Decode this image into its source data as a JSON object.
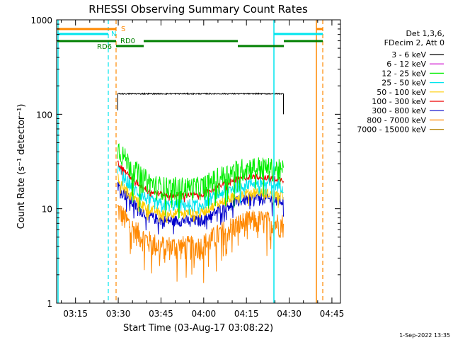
{
  "chart_data": {
    "type": "line",
    "title": "RHESSI Observing Summary Count Rates",
    "xlabel": "Start Time (03-Aug-17 03:08:22)",
    "ylabel": "Count Rate (s⁻¹ detector⁻¹)",
    "yscale": "log",
    "ylim": [
      1,
      1000
    ],
    "xlim_minutes": [
      188.37,
      288.0
    ],
    "x_ticks": [
      {
        "m": 195,
        "label": "03:15"
      },
      {
        "m": 210,
        "label": "03:30"
      },
      {
        "m": 225,
        "label": "03:45"
      },
      {
        "m": 240,
        "label": "04:00"
      },
      {
        "m": 255,
        "label": "04:15"
      },
      {
        "m": 270,
        "label": "04:30"
      },
      {
        "m": 285,
        "label": "04:45"
      }
    ],
    "y_ticks": [
      {
        "v": 1,
        "label": "1"
      },
      {
        "v": 10,
        "label": "10"
      },
      {
        "v": 100,
        "label": "100"
      },
      {
        "v": 1000,
        "label": "1000"
      }
    ],
    "legend_position": "right",
    "legend_header": [
      "Det 1,3,6,",
      "FDecim 2, Att 0"
    ],
    "series": [
      {
        "name": "3 - 6 keV",
        "color": "#000000",
        "kind": "flat",
        "level": 165,
        "noise": 0.03
      },
      {
        "name": "6 - 12 keV",
        "color": "#cc00cc",
        "kind": "hidden"
      },
      {
        "name": "12 - 25 keV",
        "color": "#00ee00",
        "kind": "curve",
        "v0": 45,
        "vmin": 17,
        "vend": 28,
        "noise": 0.28
      },
      {
        "name": "25 - 50 keV",
        "color": "#00e5ee",
        "kind": "curve",
        "v0": 27,
        "vmin": 11,
        "vend": 19,
        "noise": 0.16
      },
      {
        "name": "50 - 100 keV",
        "color": "#ffcc00",
        "kind": "curve",
        "v0": 21,
        "vmin": 9,
        "vend": 15,
        "noise": 0.12
      },
      {
        "name": "100 - 300 keV",
        "color": "#ee0000",
        "kind": "curve",
        "v0": 31,
        "vmin": 14,
        "vend": 22,
        "noise": 0.07
      },
      {
        "name": "300 - 800 keV",
        "color": "#0000cc",
        "kind": "curve",
        "v0": 18,
        "vmin": 7.5,
        "vend": 13,
        "noise": 0.14
      },
      {
        "name": "800 - 7000 keV",
        "color": "#ff8800",
        "kind": "curve",
        "v0": 10,
        "vmin": 4,
        "vend": 7.5,
        "noise": 0.3
      },
      {
        "name": "7000 - 15000 keV",
        "color": "#b8860b",
        "kind": "hidden"
      }
    ],
    "data_interval_minutes": [
      209.8,
      268.0
    ],
    "markers": [
      {
        "label": "S",
        "color": "#ff8800"
      },
      {
        "label": "N",
        "color": "#00e5ee"
      },
      {
        "label": "RD0",
        "color": "#008000"
      },
      {
        "label": "RD6",
        "color": "#008000"
      }
    ]
  },
  "timestamp": "1-Sep-2022 13:35"
}
